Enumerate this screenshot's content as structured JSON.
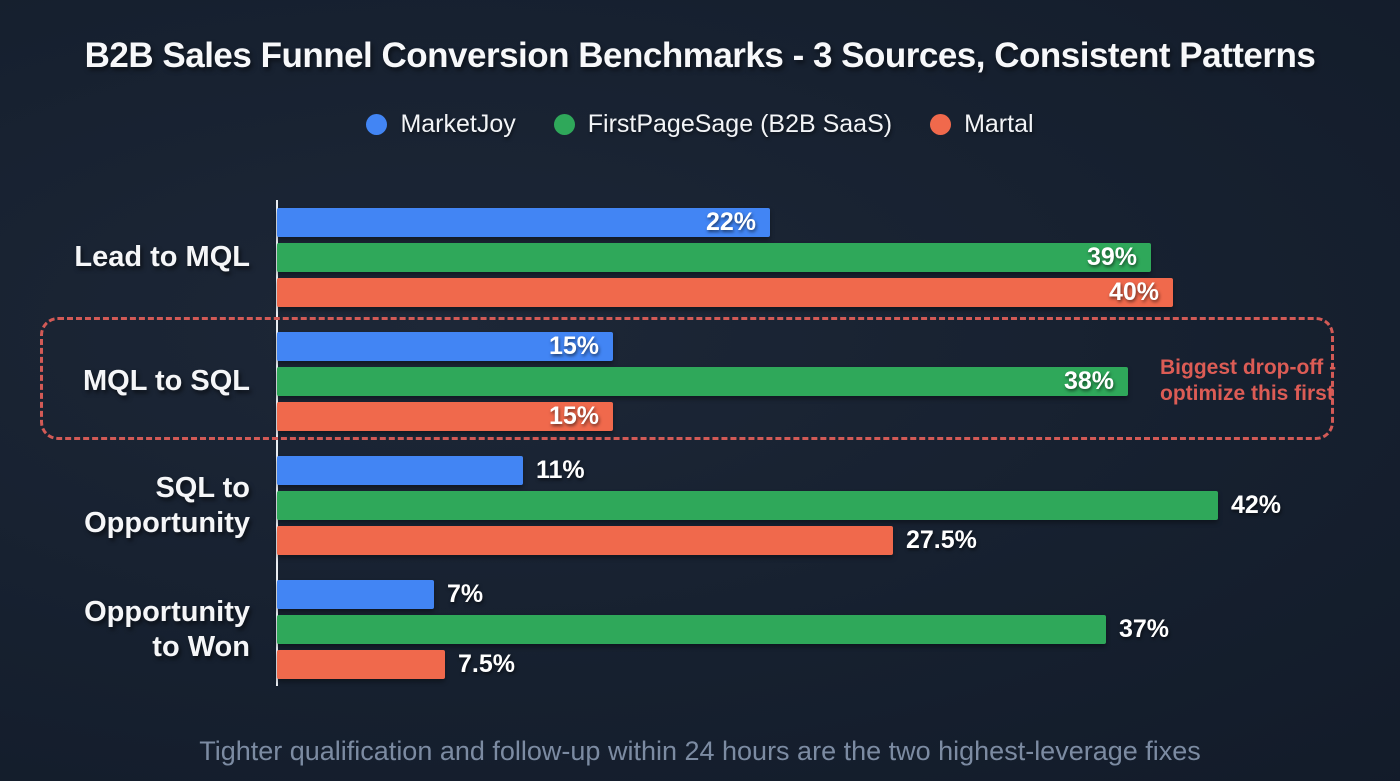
{
  "title": "B2B Sales Funnel Conversion Benchmarks - 3 Sources, Consistent Patterns",
  "footer": "Tighter qualification and follow-up within 24 hours are the two highest-leverage fixes",
  "colors": {
    "blue": "#4285f4",
    "green": "#2fa85a",
    "orange": "#f0694c",
    "accent_red": "#d95b55",
    "footer_text": "#7c8ba2",
    "value_label": "#ffffff"
  },
  "legend": [
    {
      "label": "MarketJoy",
      "color": "#4285f4"
    },
    {
      "label": "FirstPageSage (B2B SaaS)",
      "color": "#2fa85a"
    },
    {
      "label": "Martal",
      "color": "#f0694c"
    }
  ],
  "chart_data": {
    "type": "bar",
    "orientation": "horizontal",
    "title": "B2B Sales Funnel Conversion Benchmarks - 3 Sources, Consistent Patterns",
    "xlabel": "",
    "ylabel": "",
    "xlim": [
      0,
      42
    ],
    "grid": false,
    "legend_position": "top-center",
    "categories": [
      "Lead to MQL",
      "MQL to SQL",
      "SQL to Opportunity",
      "Opportunity to Won"
    ],
    "category_display_lines": [
      [
        "Lead to MQL"
      ],
      [
        "MQL to SQL"
      ],
      [
        "SQL to",
        "Opportunity"
      ],
      [
        "Opportunity",
        "to Won"
      ]
    ],
    "series": [
      {
        "name": "MarketJoy",
        "color": "#4285f4",
        "values": [
          22,
          15,
          11,
          7
        ]
      },
      {
        "name": "FirstPageSage (B2B SaaS)",
        "color": "#2fa85a",
        "values": [
          39,
          38,
          42,
          37
        ]
      },
      {
        "name": "Martal",
        "color": "#f0694c",
        "values": [
          40,
          15,
          27.5,
          7.5
        ]
      }
    ],
    "value_labels": [
      [
        "22%",
        "39%",
        "40%"
      ],
      [
        "15%",
        "38%",
        "15%"
      ],
      [
        "11%",
        "42%",
        "27.5%"
      ],
      [
        "7%",
        "37%",
        "7.5%"
      ]
    ],
    "label_inside": [
      [
        true,
        true,
        true
      ],
      [
        true,
        true,
        true
      ],
      [
        false,
        false,
        false
      ],
      [
        false,
        false,
        false
      ]
    ]
  },
  "annotation": {
    "target_category": "MQL to SQL",
    "lines": [
      "Biggest drop-off -",
      "optimize this first"
    ]
  }
}
